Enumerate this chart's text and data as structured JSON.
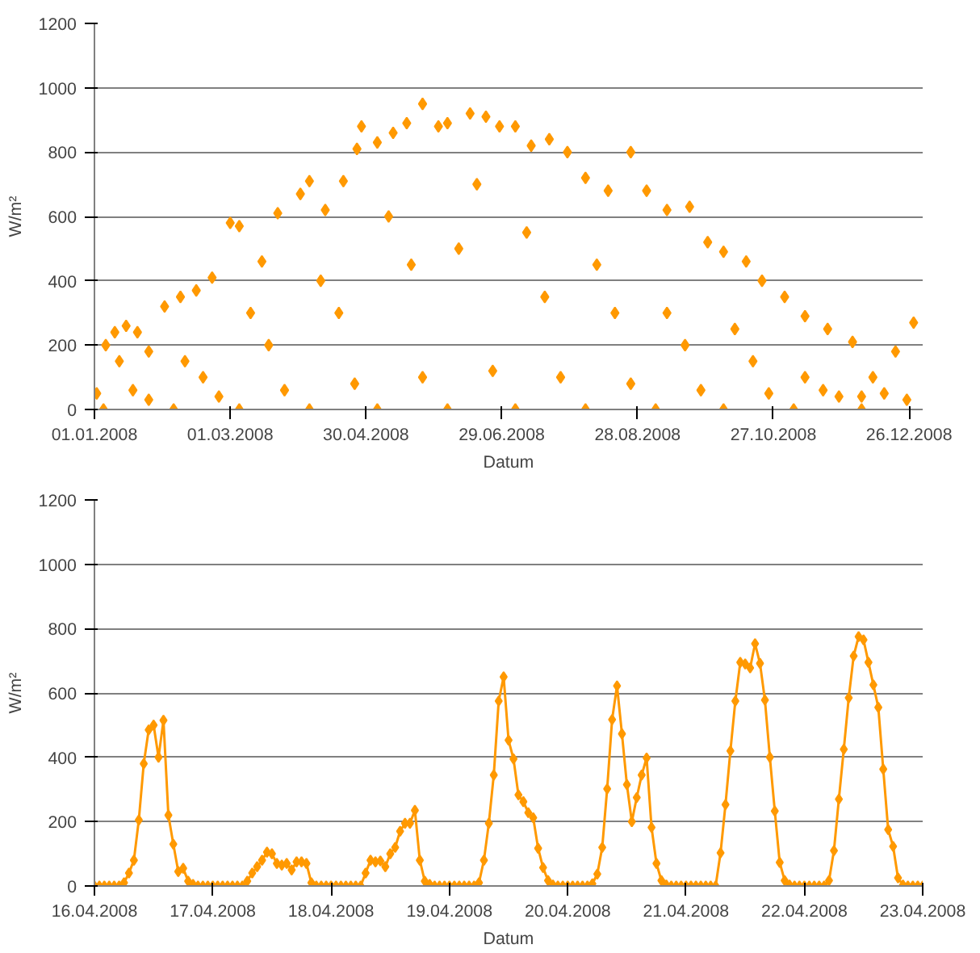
{
  "chart_data": [
    {
      "type": "scatter",
      "xlabel": "Datum",
      "ylabel": "W/m²",
      "marker": "diamond",
      "grid": "y",
      "xlim": [
        "2008-01-01",
        "2009-01-01"
      ],
      "ylim": [
        0,
        1200
      ],
      "yticks": [
        0,
        200,
        400,
        600,
        800,
        1000,
        1200
      ],
      "xticks": [
        {
          "value": "2008-01-01",
          "label": "01.01.2008"
        },
        {
          "value": "2008-03-01",
          "label": "01.03.2008"
        },
        {
          "value": "2008-04-30",
          "label": "30.04.2008"
        },
        {
          "value": "2008-06-29",
          "label": "29.06.2008"
        },
        {
          "value": "2008-08-28",
          "label": "28.08.2008"
        },
        {
          "value": "2008-10-27",
          "label": "27.10.2008"
        },
        {
          "value": "2008-12-26",
          "label": "26.12.2008"
        }
      ],
      "series": [
        {
          "color": "#ff9900",
          "x": [
            "2008-01-02",
            "2008-01-06",
            "2008-01-10",
            "2008-01-15",
            "2008-01-20",
            "2008-01-25",
            "2008-02-01",
            "2008-02-08",
            "2008-02-15",
            "2008-02-22",
            "2008-03-01",
            "2008-03-05",
            "2008-03-15",
            "2008-03-22",
            "2008-04-01",
            "2008-04-05",
            "2008-04-12",
            "2008-04-20",
            "2008-04-26",
            "2008-04-28",
            "2008-05-05",
            "2008-05-12",
            "2008-05-18",
            "2008-05-25",
            "2008-06-01",
            "2008-06-05",
            "2008-06-15",
            "2008-06-22",
            "2008-06-28",
            "2008-07-05",
            "2008-07-12",
            "2008-07-20",
            "2008-07-28",
            "2008-08-05",
            "2008-08-15",
            "2008-08-25",
            "2008-09-01",
            "2008-09-10",
            "2008-09-20",
            "2008-09-28",
            "2008-10-05",
            "2008-10-15",
            "2008-10-22",
            "2008-11-01",
            "2008-11-10",
            "2008-11-20",
            "2008-12-01",
            "2008-12-10",
            "2008-12-20",
            "2008-12-28",
            "2008-01-12",
            "2008-02-10",
            "2008-03-10",
            "2008-04-10",
            "2008-05-10",
            "2008-06-10",
            "2008-07-10",
            "2008-08-10",
            "2008-09-10",
            "2008-10-10",
            "2008-11-10",
            "2008-12-15",
            "2008-01-18",
            "2008-02-18",
            "2008-03-18",
            "2008-04-18",
            "2008-05-20",
            "2008-06-18",
            "2008-07-18",
            "2008-08-18",
            "2008-09-18",
            "2008-10-18",
            "2008-11-18",
            "2008-12-05",
            "2008-01-05",
            "2008-02-05",
            "2008-03-05",
            "2008-04-05",
            "2008-05-05",
            "2008-06-05",
            "2008-07-05",
            "2008-08-05",
            "2008-09-05",
            "2008-10-05",
            "2008-11-05",
            "2008-12-05",
            "2008-01-25",
            "2008-02-25",
            "2008-03-25",
            "2008-04-25",
            "2008-05-25",
            "2008-06-25",
            "2008-07-25",
            "2008-08-25",
            "2008-09-25",
            "2008-10-25",
            "2008-11-25",
            "2008-12-25"
          ],
          "values": [
            50,
            200,
            240,
            260,
            240,
            180,
            320,
            350,
            370,
            410,
            580,
            570,
            460,
            610,
            670,
            710,
            620,
            710,
            810,
            880,
            830,
            860,
            890,
            950,
            880,
            890,
            920,
            910,
            880,
            880,
            820,
            840,
            800,
            720,
            680,
            800,
            680,
            620,
            630,
            520,
            490,
            460,
            400,
            350,
            290,
            250,
            210,
            100,
            180,
            270,
            150,
            150,
            300,
            400,
            600,
            500,
            550,
            450,
            300,
            250,
            100,
            50,
            60,
            100,
            200,
            300,
            450,
            700,
            350,
            300,
            200,
            150,
            60,
            40,
            0,
            0,
            0,
            0,
            0,
            0,
            0,
            0,
            0,
            0,
            0,
            0,
            30,
            40,
            60,
            80,
            100,
            120,
            100,
            80,
            60,
            50,
            40,
            30
          ]
        }
      ]
    },
    {
      "type": "line",
      "xlabel": "Datum",
      "ylabel": "W/m²",
      "marker": "diamond",
      "line_style": "solid",
      "grid": "y",
      "xlim": [
        "2008-04-16T00:00",
        "2008-04-23T00:00"
      ],
      "ylim": [
        0,
        1200
      ],
      "yticks": [
        0,
        200,
        400,
        600,
        800,
        1000,
        1200
      ],
      "xticks": [
        {
          "value": "2008-04-16T00:00",
          "label": "16.04.2008"
        },
        {
          "value": "2008-04-17T00:00",
          "label": "17.04.2008"
        },
        {
          "value": "2008-04-18T00:00",
          "label": "18.04.2008"
        },
        {
          "value": "2008-04-19T00:00",
          "label": "19.04.2008"
        },
        {
          "value": "2008-04-20T00:00",
          "label": "20.04.2008"
        },
        {
          "value": "2008-04-21T00:00",
          "label": "21.04.2008"
        },
        {
          "value": "2008-04-22T00:00",
          "label": "22.04.2008"
        },
        {
          "value": "2008-04-23T00:00",
          "label": "23.04.2008"
        }
      ],
      "series": [
        {
          "color": "#ff9900",
          "x": [
            "2008-04-16T00:00",
            "2008-04-16T01:00",
            "2008-04-16T02:00",
            "2008-04-16T03:00",
            "2008-04-16T04:00",
            "2008-04-16T05:00",
            "2008-04-16T06:00",
            "2008-04-16T07:00",
            "2008-04-16T08:00",
            "2008-04-16T09:00",
            "2008-04-16T10:00",
            "2008-04-16T11:00",
            "2008-04-16T12:00",
            "2008-04-16T13:00",
            "2008-04-16T14:00",
            "2008-04-16T15:00",
            "2008-04-16T16:00",
            "2008-04-16T17:00",
            "2008-04-16T18:00",
            "2008-04-16T19:00",
            "2008-04-16T20:00",
            "2008-04-16T21:00",
            "2008-04-16T22:00",
            "2008-04-16T23:00",
            "2008-04-17T00:00",
            "2008-04-17T01:00",
            "2008-04-17T02:00",
            "2008-04-17T03:00",
            "2008-04-17T04:00",
            "2008-04-17T05:00",
            "2008-04-17T06:00",
            "2008-04-17T07:00",
            "2008-04-17T08:00",
            "2008-04-17T09:00",
            "2008-04-17T10:00",
            "2008-04-17T11:00",
            "2008-04-17T12:00",
            "2008-04-17T13:00",
            "2008-04-17T14:00",
            "2008-04-17T15:00",
            "2008-04-17T16:00",
            "2008-04-17T17:00",
            "2008-04-17T18:00",
            "2008-04-17T19:00",
            "2008-04-17T20:00",
            "2008-04-17T21:00",
            "2008-04-17T22:00",
            "2008-04-17T23:00",
            "2008-04-18T00:00",
            "2008-04-18T01:00",
            "2008-04-18T02:00",
            "2008-04-18T03:00",
            "2008-04-18T04:00",
            "2008-04-18T05:00",
            "2008-04-18T06:00",
            "2008-04-18T07:00",
            "2008-04-18T08:00",
            "2008-04-18T09:00",
            "2008-04-18T10:00",
            "2008-04-18T11:00",
            "2008-04-18T12:00",
            "2008-04-18T13:00",
            "2008-04-18T14:00",
            "2008-04-18T15:00",
            "2008-04-18T16:00",
            "2008-04-18T17:00",
            "2008-04-18T18:00",
            "2008-04-18T19:00",
            "2008-04-18T20:00",
            "2008-04-18T21:00",
            "2008-04-18T22:00",
            "2008-04-18T23:00",
            "2008-04-19T00:00",
            "2008-04-19T01:00",
            "2008-04-19T02:00",
            "2008-04-19T03:00",
            "2008-04-19T04:00",
            "2008-04-19T05:00",
            "2008-04-19T06:00",
            "2008-04-19T07:00",
            "2008-04-19T08:00",
            "2008-04-19T09:00",
            "2008-04-19T10:00",
            "2008-04-19T11:00",
            "2008-04-19T12:00",
            "2008-04-19T13:00",
            "2008-04-19T14:00",
            "2008-04-19T15:00",
            "2008-04-19T16:00",
            "2008-04-19T17:00",
            "2008-04-19T18:00",
            "2008-04-19T19:00",
            "2008-04-19T20:00",
            "2008-04-19T21:00",
            "2008-04-19T22:00",
            "2008-04-19T23:00",
            "2008-04-20T00:00",
            "2008-04-20T01:00",
            "2008-04-20T02:00",
            "2008-04-20T03:00",
            "2008-04-20T04:00",
            "2008-04-20T05:00",
            "2008-04-20T06:00",
            "2008-04-20T07:00",
            "2008-04-20T08:00",
            "2008-04-20T09:00",
            "2008-04-20T10:00",
            "2008-04-20T11:00",
            "2008-04-20T12:00",
            "2008-04-20T13:00",
            "2008-04-20T14:00",
            "2008-04-20T15:00",
            "2008-04-20T16:00",
            "2008-04-20T17:00",
            "2008-04-20T18:00",
            "2008-04-20T19:00",
            "2008-04-20T20:00",
            "2008-04-20T21:00",
            "2008-04-20T22:00",
            "2008-04-20T23:00",
            "2008-04-21T00:00",
            "2008-04-21T01:00",
            "2008-04-21T02:00",
            "2008-04-21T03:00",
            "2008-04-21T04:00",
            "2008-04-21T05:00",
            "2008-04-21T06:00",
            "2008-04-21T07:00",
            "2008-04-21T08:00",
            "2008-04-21T09:00",
            "2008-04-21T10:00",
            "2008-04-21T11:00",
            "2008-04-21T12:00",
            "2008-04-21T13:00",
            "2008-04-21T14:00",
            "2008-04-21T15:00",
            "2008-04-21T16:00",
            "2008-04-21T17:00",
            "2008-04-21T18:00",
            "2008-04-21T19:00",
            "2008-04-21T20:00",
            "2008-04-21T21:00",
            "2008-04-21T22:00",
            "2008-04-21T23:00",
            "2008-04-22T00:00",
            "2008-04-22T01:00",
            "2008-04-22T02:00",
            "2008-04-22T03:00",
            "2008-04-22T04:00",
            "2008-04-22T05:00",
            "2008-04-22T06:00",
            "2008-04-22T07:00",
            "2008-04-22T08:00",
            "2008-04-22T09:00",
            "2008-04-22T10:00",
            "2008-04-22T11:00",
            "2008-04-22T12:00",
            "2008-04-22T13:00",
            "2008-04-22T14:00",
            "2008-04-22T15:00",
            "2008-04-22T16:00",
            "2008-04-22T17:00",
            "2008-04-22T18:00",
            "2008-04-22T19:00",
            "2008-04-22T20:00",
            "2008-04-22T21:00",
            "2008-04-22T22:00",
            "2008-04-22T23:00",
            "2008-04-23T00:00"
          ],
          "values": [
            0,
            0,
            0,
            0,
            0,
            0,
            10,
            40,
            80,
            205,
            380,
            485,
            500,
            400,
            515,
            220,
            130,
            45,
            55,
            15,
            5,
            0,
            0,
            0,
            0,
            0,
            0,
            0,
            0,
            0,
            0,
            15,
            40,
            60,
            80,
            105,
            100,
            70,
            65,
            70,
            50,
            75,
            75,
            70,
            10,
            0,
            0,
            0,
            0,
            0,
            0,
            0,
            0,
            0,
            0,
            40,
            80,
            75,
            78,
            60,
            100,
            120,
            170,
            195,
            195,
            235,
            80,
            15,
            5,
            0,
            0,
            0,
            0,
            0,
            0,
            0,
            0,
            0,
            10,
            80,
            195,
            345,
            575,
            650,
            453,
            395,
            283,
            262,
            228,
            212,
            117,
            57,
            17,
            3,
            0,
            0,
            0,
            0,
            0,
            0,
            0,
            7,
            37,
            120,
            302,
            517,
            622,
            473,
            315,
            200,
            275,
            345,
            398,
            182,
            70,
            17,
            3,
            0,
            0,
            0,
            0,
            0,
            0,
            0,
            0,
            0,
            0,
            103,
            253,
            420,
            575,
            695,
            690,
            678,
            753,
            692,
            578,
            400,
            233,
            73,
            17,
            3,
            0,
            0,
            0,
            0,
            0,
            0,
            0,
            17,
            110,
            270,
            425,
            585,
            715,
            775,
            765,
            695,
            625,
            555,
            363,
            175,
            123,
            25,
            3,
            0,
            0,
            0,
            0
          ]
        }
      ]
    }
  ]
}
